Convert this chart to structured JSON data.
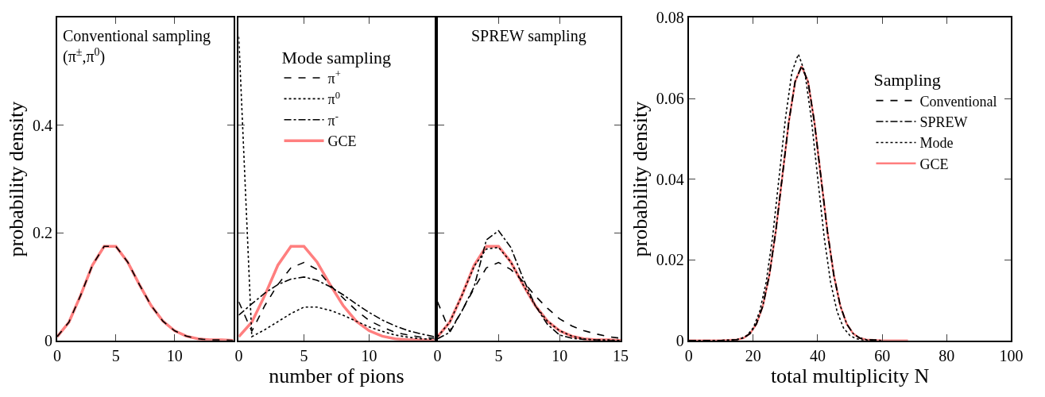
{
  "chart_data": [
    {
      "type": "line",
      "title": "Conventional sampling\n(π$^{±}$,π$^{0}$)",
      "ylabel": "probability density",
      "xlim": [
        0,
        15
      ],
      "ylim": [
        0,
        0.6
      ],
      "xticks": [
        0,
        5,
        10
      ],
      "yticks": [
        0,
        0.2,
        0.4
      ],
      "legend": false,
      "x": [
        0,
        1,
        2,
        3,
        4,
        5,
        6,
        7,
        8,
        9,
        10,
        11,
        12,
        13,
        14,
        15
      ],
      "series": [
        {
          "color": "#ff7f7f",
          "line_style": "solid",
          "values": [
            0.007,
            0.034,
            0.084,
            0.14,
            0.175,
            0.175,
            0.146,
            0.104,
            0.065,
            0.036,
            0.018,
            0.008,
            0.003,
            0.001,
            0.001,
            0
          ]
        },
        {
          "color": "#000000",
          "line_style": "dashed",
          "values": [
            0.007,
            0.034,
            0.084,
            0.14,
            0.175,
            0.175,
            0.146,
            0.104,
            0.065,
            0.036,
            0.018,
            0.008,
            0.003,
            0.001,
            0.001,
            0
          ]
        }
      ]
    },
    {
      "type": "line",
      "legend_title": "Mode sampling",
      "xlabel": "number of pions",
      "xlim": [
        0,
        15
      ],
      "ylim": [
        0,
        0.6
      ],
      "xticks": [
        0,
        5,
        10
      ],
      "yticks": [
        0,
        0.2,
        0.4
      ],
      "legend": "top",
      "tick_labels": "x",
      "x": [
        0,
        1,
        2,
        3,
        4,
        5,
        6,
        7,
        8,
        9,
        10,
        11,
        12,
        13,
        14,
        15
      ],
      "series": [
        {
          "name": "π$^{+}$",
          "color": "#000000",
          "line_style": "dashed",
          "values": [
            0.072,
            0.017,
            0.065,
            0.104,
            0.135,
            0.145,
            0.132,
            0.103,
            0.079,
            0.056,
            0.037,
            0.025,
            0.015,
            0.01,
            0.006,
            0.004
          ]
        },
        {
          "name": "π$^{0}$",
          "color": "#000000",
          "line_style": "dotted",
          "values": [
            0.565,
            0.007,
            0.02,
            0.035,
            0.05,
            0.062,
            0.062,
            0.056,
            0.047,
            0.036,
            0.025,
            0.017,
            0.01,
            0.006,
            0.003,
            0.002
          ]
        },
        {
          "name": "π$^{-}$",
          "color": "#000000",
          "line_style": "dashdot",
          "values": [
            0.047,
            0.068,
            0.088,
            0.104,
            0.114,
            0.118,
            0.112,
            0.1,
            0.085,
            0.068,
            0.052,
            0.038,
            0.027,
            0.018,
            0.012,
            0.007
          ]
        },
        {
          "name": "GCE",
          "color": "#ff7f7f",
          "line_style": "solid",
          "values": [
            0.007,
            0.034,
            0.084,
            0.14,
            0.175,
            0.175,
            0.146,
            0.104,
            0.065,
            0.036,
            0.018,
            0.008,
            0.003,
            0.001,
            0.001,
            0
          ]
        }
      ]
    },
    {
      "type": "line",
      "title": "SPREW sampling",
      "xlim": [
        0,
        15
      ],
      "ylim": [
        0,
        0.6
      ],
      "xticks": [
        0,
        5,
        10,
        15
      ],
      "yticks": [
        0,
        0.2,
        0.4
      ],
      "legend": false,
      "tick_labels": "x",
      "x": [
        0,
        1,
        2,
        3,
        4,
        5,
        6,
        7,
        8,
        9,
        10,
        11,
        12,
        13,
        14,
        15
      ],
      "series": [
        {
          "color": "#ff7f7f",
          "line_style": "solid",
          "values": [
            0.007,
            0.034,
            0.084,
            0.14,
            0.175,
            0.175,
            0.146,
            0.104,
            0.065,
            0.036,
            0.018,
            0.008,
            0.003,
            0.001,
            0.001,
            0
          ]
        },
        {
          "color": "#000000",
          "line_style": "dotted",
          "values": [
            0.007,
            0.034,
            0.084,
            0.138,
            0.17,
            0.173,
            0.146,
            0.104,
            0.065,
            0.036,
            0.018,
            0.008,
            0.003,
            0.001,
            0.001,
            0
          ]
        },
        {
          "color": "#000000",
          "line_style": "dashed",
          "values": [
            0.072,
            0.017,
            0.055,
            0.097,
            0.135,
            0.145,
            0.132,
            0.11,
            0.083,
            0.06,
            0.04,
            0.027,
            0.018,
            0.012,
            0.007,
            0.004
          ]
        },
        {
          "color": "#000000",
          "line_style": "dashdot",
          "values": [
            0.003,
            0.015,
            0.055,
            0.1,
            0.187,
            0.204,
            0.173,
            0.116,
            0.065,
            0.03,
            0.01,
            0.004,
            0.002,
            0.001,
            0,
            0
          ]
        }
      ]
    },
    {
      "type": "line",
      "legend_title": "Sampling",
      "xlabel": "total multiplicity N",
      "ylabel": "probability density",
      "xlim": [
        0,
        100
      ],
      "ylim": [
        0,
        0.08
      ],
      "xticks": [
        0,
        20,
        40,
        60,
        80,
        100
      ],
      "yticks": [
        0,
        0.02,
        0.04,
        0.06,
        0.08
      ],
      "legend": "top right",
      "series": [
        {
          "name": "Conventional",
          "color": "#000000",
          "line_style": "dashed",
          "x": [
            0,
            10,
            15,
            17,
            19,
            21,
            23,
            25,
            27,
            29,
            31,
            33,
            35,
            37,
            39,
            41,
            43,
            45,
            47,
            49,
            51,
            53,
            55,
            60
          ],
          "values": [
            0,
            0,
            0.0002,
            0.0006,
            0.0017,
            0.0041,
            0.0086,
            0.0162,
            0.0271,
            0.0405,
            0.054,
            0.0642,
            0.068,
            0.0642,
            0.054,
            0.0405,
            0.0271,
            0.0162,
            0.0086,
            0.0041,
            0.0017,
            0.0006,
            0.0002,
            0
          ]
        },
        {
          "name": "SPREW",
          "color": "#000000",
          "line_style": "dashdot",
          "x": [
            0,
            10,
            15,
            17,
            19,
            21,
            23,
            25,
            27,
            29,
            31,
            33,
            35,
            37,
            39,
            41,
            43,
            45,
            47,
            49,
            51,
            53,
            55,
            60
          ],
          "values": [
            0,
            0,
            0.0002,
            0.0006,
            0.0017,
            0.0041,
            0.0086,
            0.0162,
            0.0271,
            0.0405,
            0.054,
            0.0642,
            0.068,
            0.0642,
            0.054,
            0.0405,
            0.0271,
            0.0162,
            0.0086,
            0.0041,
            0.0017,
            0.0006,
            0.0002,
            0
          ]
        },
        {
          "name": "Mode",
          "color": "#000000",
          "line_style": "dotted",
          "x": [
            0,
            10,
            14,
            16,
            18,
            20,
            22,
            24,
            26,
            28,
            30,
            32,
            34,
            36,
            38,
            40,
            42,
            44,
            46,
            48,
            50,
            52,
            54,
            58
          ],
          "values": [
            0,
            0,
            0.0001,
            0.0004,
            0.0012,
            0.0031,
            0.0072,
            0.0144,
            0.0256,
            0.0403,
            0.0551,
            0.0665,
            0.071,
            0.0665,
            0.0551,
            0.0403,
            0.0256,
            0.0144,
            0.0072,
            0.0031,
            0.0012,
            0.0004,
            0.0001,
            0
          ]
        },
        {
          "name": "GCE",
          "color": "#ff7f7f",
          "line_style": "solid",
          "x": [
            0,
            10,
            15,
            17,
            19,
            21,
            23,
            25,
            27,
            29,
            31,
            33,
            35,
            37,
            39,
            41,
            43,
            45,
            47,
            49,
            51,
            53,
            55,
            60,
            68
          ],
          "values": [
            0,
            0,
            0.0002,
            0.0006,
            0.0017,
            0.0041,
            0.0086,
            0.0162,
            0.0271,
            0.0405,
            0.054,
            0.0642,
            0.068,
            0.0642,
            0.054,
            0.0405,
            0.0271,
            0.0162,
            0.0086,
            0.0041,
            0.0017,
            0.0006,
            0.0002,
            0,
            0
          ]
        }
      ]
    }
  ]
}
